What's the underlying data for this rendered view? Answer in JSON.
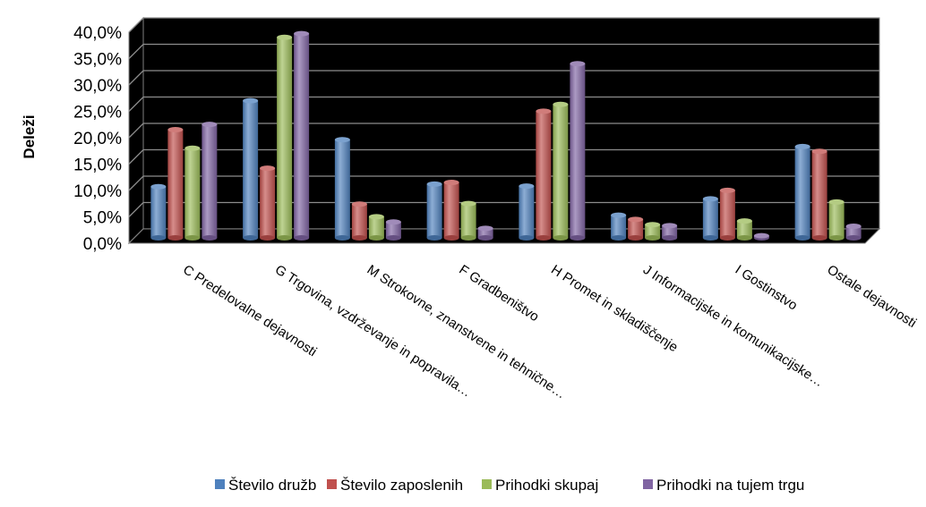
{
  "chart_data": {
    "type": "bar",
    "ylabel": "Deleži",
    "xlabel": "",
    "ylim": [
      0,
      40
    ],
    "y_ticks": [
      "0,0%",
      "5,0%",
      "10,0%",
      "15,0%",
      "20,0%",
      "25,0%",
      "30,0%",
      "35,0%",
      "40,0%"
    ],
    "categories": [
      "C Predelovalne dejavnosti",
      "G Trgovina, vzdrževanje in popravila…",
      "M Strokovne, znanstvene in tehnične…",
      "F Gradbeništvo",
      "H Promet in skladiščenje",
      "J Informacijske in komunikacijske…",
      "I Gostinstvo",
      "Ostale dejavnosti"
    ],
    "series": [
      {
        "name": "Število družb",
        "color": "#4F81BD",
        "values": [
          9.7,
          26.0,
          18.6,
          10.2,
          9.8,
          4.3,
          7.4,
          17.3
        ]
      },
      {
        "name": "Število zaposlenih",
        "color": "#C0504D",
        "values": [
          20.5,
          13.2,
          6.4,
          10.5,
          24.0,
          3.5,
          9.0,
          16.4
        ]
      },
      {
        "name": "Prihodki skupaj",
        "color": "#9BBB59",
        "values": [
          17.0,
          38.0,
          4.0,
          6.5,
          25.3,
          2.5,
          3.2,
          6.8
        ]
      },
      {
        "name": "Prihodki na tujem trgu",
        "color": "#8064A2",
        "values": [
          21.5,
          38.7,
          3.0,
          1.8,
          33.0,
          2.3,
          0.4,
          2.2
        ]
      }
    ],
    "grid": true,
    "legend_position": "bottom",
    "plot_background": "#000000"
  }
}
